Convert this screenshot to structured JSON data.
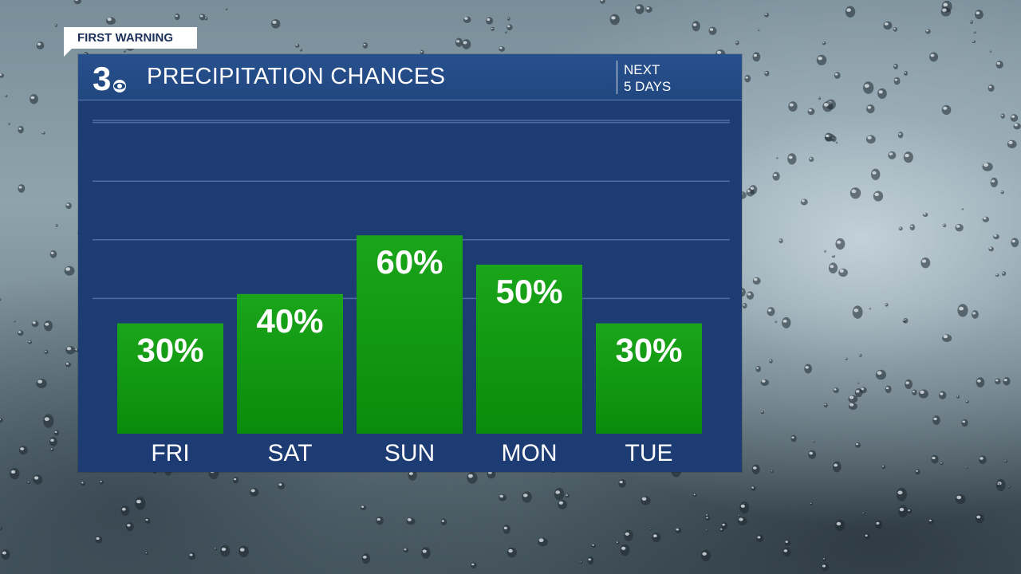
{
  "tag_label": "FIRST WARNING",
  "header": {
    "logo_text": "3",
    "title": "PRECIPITATION CHANCES",
    "note_line1": "NEXT",
    "note_line2": "5 DAYS"
  },
  "colors": {
    "panel": "#1c3c73",
    "header": "#24498a",
    "bar_top": "#1aa51a",
    "bar_bottom": "#0a8c0a",
    "gridline": "#4e6c9e",
    "text": "#ffffff"
  },
  "chart_data": {
    "type": "bar",
    "title": "PRECIPITATION CHANCES",
    "categories": [
      "FRI",
      "SAT",
      "SUN",
      "MON",
      "TUE"
    ],
    "values": [
      30,
      40,
      60,
      50,
      30
    ],
    "value_labels": [
      "30%",
      "40%",
      "60%",
      "50%",
      "30%"
    ],
    "ylim": [
      0,
      100
    ],
    "grid": true,
    "legend": "none"
  }
}
